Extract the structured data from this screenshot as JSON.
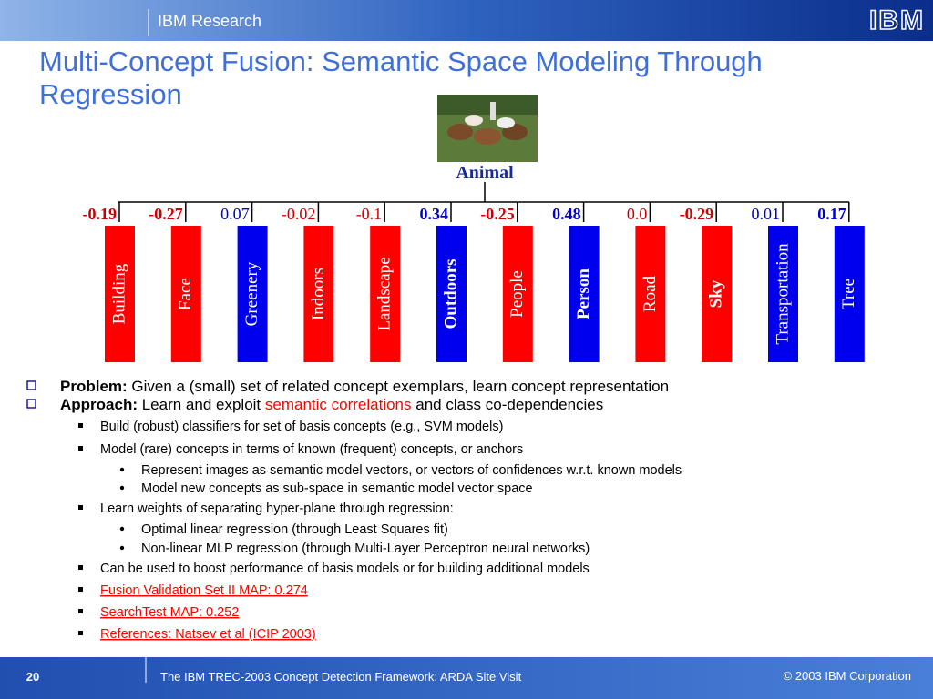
{
  "header": {
    "org": "IBM Research",
    "logo": "IBM"
  },
  "title": [
    "Multi-Concept Fusion: Semantic Space Modeling Through",
    "Regression"
  ],
  "diagram": {
    "root": "Animal",
    "nodes": [
      {
        "weight": "-0.19",
        "label": "Building",
        "color": "red",
        "bold_weight": true,
        "bold_label": false
      },
      {
        "weight": "-0.27",
        "label": "Face",
        "color": "red",
        "bold_weight": true,
        "bold_label": false
      },
      {
        "weight": "0.07",
        "label": "Greenery",
        "color": "blue",
        "bold_weight": false,
        "bold_label": false
      },
      {
        "weight": "-0.02",
        "label": "Indoors",
        "color": "red",
        "bold_weight": false,
        "bold_label": false
      },
      {
        "weight": "-0.1",
        "label": "Landscape",
        "color": "red",
        "bold_weight": false,
        "bold_label": false
      },
      {
        "weight": "0.34",
        "label": "Outdoors",
        "color": "blue",
        "bold_weight": true,
        "bold_label": true
      },
      {
        "weight": "-0.25",
        "label": "People",
        "color": "red",
        "bold_weight": true,
        "bold_label": false
      },
      {
        "weight": "0.48",
        "label": "Person",
        "color": "blue",
        "bold_weight": true,
        "bold_label": true
      },
      {
        "weight": "0.0",
        "label": "Road",
        "color": "red",
        "bold_weight": false,
        "bold_label": false
      },
      {
        "weight": "-0.29",
        "label": "Sky",
        "color": "red",
        "bold_weight": true,
        "bold_label": true
      },
      {
        "weight": "0.01",
        "label": "Transportation",
        "color": "blue",
        "bold_weight": false,
        "bold_label": false
      },
      {
        "weight": "0.17",
        "label": "Tree",
        "color": "blue",
        "bold_weight": true,
        "bold_label": false
      }
    ]
  },
  "bullets": [
    {
      "level": 1,
      "parts": [
        {
          "text": "Problem:",
          "style": "bold"
        },
        {
          "text": " Given a (small) set of related concept exemplars, learn concept representation",
          "style": "plain"
        }
      ]
    },
    {
      "level": 1,
      "parts": [
        {
          "text": "Approach:",
          "style": "bold"
        },
        {
          "text": " Learn and exploit ",
          "style": "plain"
        },
        {
          "text": "semantic correlations",
          "style": "red"
        },
        {
          "text": " and class co-dependencies",
          "style": "plain"
        }
      ]
    },
    {
      "level": 2,
      "parts": [
        {
          "text": "Build (robust) classifiers for set of basis concepts (e.g., SVM models)",
          "style": "plain"
        }
      ]
    },
    {
      "level": 2,
      "parts": [
        {
          "text": "Model (rare) concepts in terms of known (frequent) concepts, or anchors",
          "style": "plain"
        }
      ]
    },
    {
      "level": 3,
      "parts": [
        {
          "text": "Represent images as semantic model vectors, or vectors of confidences w.r.t. known models",
          "style": "plain"
        }
      ]
    },
    {
      "level": 3,
      "parts": [
        {
          "text": "Model new concepts as sub-space in semantic model vector space",
          "style": "plain"
        }
      ]
    },
    {
      "level": 2,
      "parts": [
        {
          "text": "Learn weights of separating hyper-plane through regression:",
          "style": "plain"
        }
      ]
    },
    {
      "level": 3,
      "parts": [
        {
          "text": "Optimal linear regression (through Least Squares fit)",
          "style": "plain"
        }
      ]
    },
    {
      "level": 3,
      "parts": [
        {
          "text": "Non-linear MLP regression (through Multi-Layer Perceptron neural networks)",
          "style": "plain"
        }
      ]
    },
    {
      "level": 2,
      "parts": [
        {
          "text": "Can be used to boost performance of basis models or for building additional models",
          "style": "plain"
        }
      ]
    },
    {
      "level": 2,
      "parts": [
        {
          "text": "Fusion Validation Set II MAP: 0.274",
          "style": "link"
        }
      ]
    },
    {
      "level": 2,
      "parts": [
        {
          "text": "SearchTest MAP: 0.252",
          "style": "link"
        }
      ]
    },
    {
      "level": 2,
      "parts": [
        {
          "text": "References: Natsev et al (ICIP 2003)",
          "style": "link"
        }
      ]
    }
  ],
  "footer": {
    "page": "20",
    "event": "The IBM TREC-2003 Concept Detection Framework: ARDA Site Visit",
    "copyright": "© 2003 IBM Corporation"
  }
}
